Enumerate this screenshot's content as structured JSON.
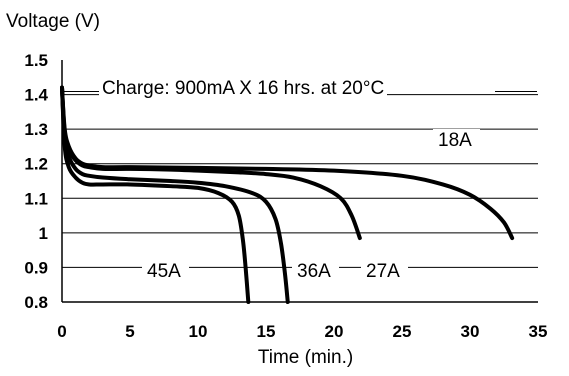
{
  "chart_data": {
    "type": "line",
    "title": "",
    "ylabel": "Voltage (V)",
    "xlabel": "Time (min.)",
    "annotation": "Charge: 900mA X 16 hrs. at 20°C",
    "xlim": [
      0,
      35
    ],
    "ylim": [
      0.8,
      1.5
    ],
    "xticks": [
      "0",
      "5",
      "10",
      "15",
      "20",
      "25",
      "30",
      "35"
    ],
    "yticks": [
      "0.8",
      "0.9",
      "1",
      "1.1",
      "1.2",
      "1.3",
      "1.4",
      "1.5"
    ],
    "grid": "horizontal",
    "series": [
      {
        "name": "18A",
        "x": [
          0,
          0.2,
          0.5,
          1,
          1.5,
          2,
          3,
          5,
          10,
          15,
          20,
          25,
          28,
          30,
          31.5,
          32.5,
          33.1
        ],
        "y": [
          1.42,
          1.3,
          1.25,
          1.215,
          1.2,
          1.195,
          1.19,
          1.19,
          1.188,
          1.185,
          1.18,
          1.165,
          1.14,
          1.11,
          1.07,
          1.03,
          0.985
        ]
      },
      {
        "name": "27A",
        "x": [
          0,
          0.2,
          0.5,
          1,
          1.5,
          2,
          3,
          5,
          8,
          10,
          13,
          15,
          17,
          19,
          20.5,
          21.3,
          21.9
        ],
        "y": [
          1.42,
          1.29,
          1.24,
          1.21,
          1.195,
          1.19,
          1.185,
          1.185,
          1.183,
          1.18,
          1.175,
          1.17,
          1.16,
          1.135,
          1.1,
          1.05,
          0.985
        ]
      },
      {
        "name": "36A",
        "x": [
          0,
          0.2,
          0.5,
          1,
          1.5,
          2,
          3,
          5,
          8,
          10,
          12,
          14,
          15,
          15.7,
          16.1,
          16.4,
          16.6
        ],
        "y": [
          1.42,
          1.27,
          1.22,
          1.185,
          1.17,
          1.165,
          1.16,
          1.155,
          1.15,
          1.145,
          1.135,
          1.115,
          1.09,
          1.04,
          0.97,
          0.88,
          0.8
        ]
      },
      {
        "name": "45A",
        "x": [
          0,
          0.2,
          0.5,
          1,
          1.5,
          2,
          3,
          5,
          8,
          10,
          11.5,
          12.5,
          13,
          13.3,
          13.5,
          13.7
        ],
        "y": [
          1.42,
          1.25,
          1.19,
          1.16,
          1.145,
          1.14,
          1.14,
          1.14,
          1.135,
          1.13,
          1.115,
          1.09,
          1.05,
          0.98,
          0.9,
          0.8
        ]
      }
    ]
  }
}
